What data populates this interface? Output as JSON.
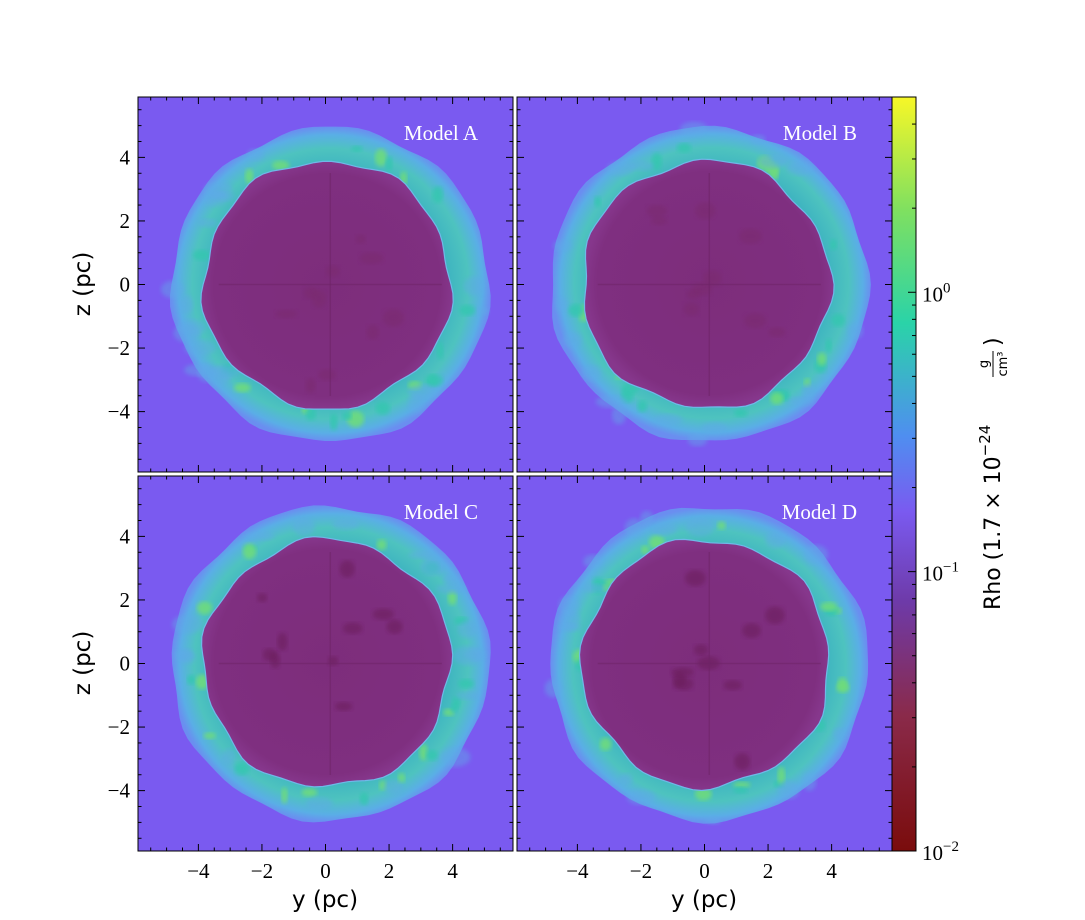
{
  "chart_data": {
    "type": "heatmap",
    "x_axis_label": "y  (pc)",
    "y_axis_label": "z  (pc)",
    "xlim": [
      -5.9,
      5.9
    ],
    "ylim": [
      -5.9,
      5.9
    ],
    "x_ticks": [
      -4,
      -2,
      0,
      2,
      4
    ],
    "y_ticks": [
      -4,
      -2,
      0,
      2,
      4
    ],
    "x_tick_labels": [
      "−4",
      "−2",
      "0",
      "2",
      "4"
    ],
    "y_tick_labels": [
      "−4",
      "−2",
      "0",
      "2",
      "4"
    ],
    "layout": "2x2 grid",
    "panels": [
      {
        "title": "Model A",
        "shell_outer_radius_pc": 5.0,
        "cavity_radius_pc": 3.9
      },
      {
        "title": "Model B",
        "shell_outer_radius_pc": 5.0,
        "cavity_radius_pc": 3.9
      },
      {
        "title": "Model C",
        "shell_outer_radius_pc": 5.0,
        "cavity_radius_pc": 3.9
      },
      {
        "title": "Model D",
        "shell_outer_radius_pc": 5.0,
        "cavity_radius_pc": 3.9
      }
    ],
    "colorbar": {
      "label_prefix": "Rho",
      "label_units_main": "1.7 × 10",
      "label_units_exp": "−24",
      "label_unit_num": "g",
      "label_unit_den": "cm³",
      "scale": "log",
      "range": [
        0.01,
        5.0
      ],
      "ticks": [
        0.01,
        0.1,
        1.0
      ],
      "tick_bases": [
        "10",
        "10",
        "10"
      ],
      "tick_exps": [
        "−2",
        "−1",
        "0"
      ],
      "colormap": "turbo-like",
      "colors": {
        "min": "#7a0c0c",
        "low": "#8a2a4a",
        "mid_low": "#6e3aa8",
        "ambient": "#7a5af0",
        "mid": "#4f8ef0",
        "mid_high": "#2ad3a8",
        "high": "#7fe060",
        "max": "#f7f727"
      }
    }
  }
}
